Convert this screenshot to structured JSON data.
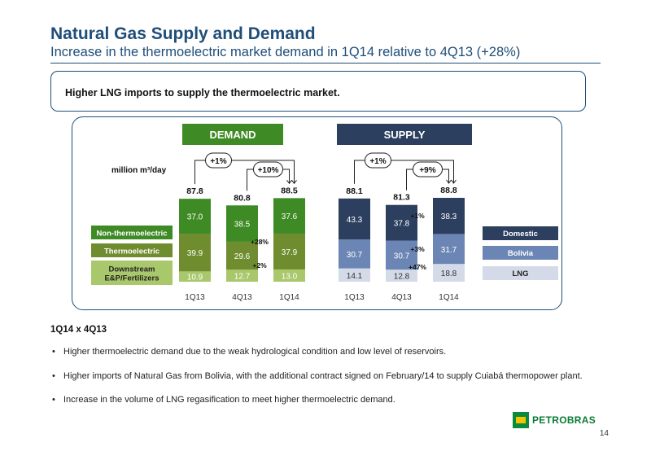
{
  "header": {
    "title": "Natural Gas Supply and Demand",
    "subtitle": "Increase in the thermoelectric market demand in 1Q14 relative to 4Q13 (+28%)"
  },
  "highlight": "Higher LNG imports to supply the thermoelectric market.",
  "section": {
    "title": "1Q14 x 4Q13",
    "bullets": [
      "Higher thermoelectric demand due to the weak hydrological condition and low level of reservoirs.",
      "Higher imports of Natural Gas from Bolivia, with the additional contract signed on February/14 to supply Cuiabá thermopower plant.",
      "Increase in the volume of LNG regasification to meet higher thermoelectric demand."
    ]
  },
  "logo": {
    "text": "PETROBRAS",
    "mark": "BR"
  },
  "page_number": "14",
  "chart_data": [
    {
      "type": "bar",
      "stacked": true,
      "header": "DEMAND",
      "unit_label": "million m³/day",
      "categories": [
        "1Q13",
        "4Q13",
        "1Q14"
      ],
      "series": [
        {
          "name": "Downstream E&P/Fertilizers",
          "label_lines": [
            "Downstream",
            "E&P/Fertilizers"
          ],
          "values": [
            10.9,
            12.7,
            13.0
          ],
          "color": "#a9c76b"
        },
        {
          "name": "Thermoelectric",
          "label_lines": [
            "Thermoelectric"
          ],
          "values": [
            39.9,
            29.6,
            37.9
          ],
          "color": "#6f8c2e"
        },
        {
          "name": "Non-thermoelectric",
          "label_lines": [
            "Non-thermoelectric"
          ],
          "values": [
            37.0,
            38.5,
            37.6
          ],
          "color": "#3e8a24"
        }
      ],
      "totals": [
        "87.8",
        "80.8",
        "88.5"
      ],
      "value_labels": [
        [
          "10.9",
          "39.9",
          "37.0"
        ],
        [
          "12.7",
          "29.6",
          "38.5"
        ],
        [
          "13.0",
          "37.9",
          "37.6"
        ]
      ],
      "growth_series": [
        "+2%",
        "+28%",
        ""
      ],
      "comparisons": [
        {
          "text": "+1%",
          "from": 0,
          "to": 2
        },
        {
          "text": "+10%",
          "from": 1,
          "to": 2
        }
      ],
      "header_color": "#3e8a24"
    },
    {
      "type": "bar",
      "stacked": true,
      "header": "SUPPLY",
      "categories": [
        "1Q13",
        "4Q13",
        "1Q14"
      ],
      "series": [
        {
          "name": "LNG",
          "label_lines": [
            "LNG"
          ],
          "values": [
            14.1,
            12.8,
            18.8
          ],
          "color": "#d4dae8"
        },
        {
          "name": "Bolivia",
          "label_lines": [
            "Bolivia"
          ],
          "values": [
            30.7,
            30.7,
            31.7
          ],
          "color": "#6b86b4"
        },
        {
          "name": "Domestic",
          "label_lines": [
            "Domestic"
          ],
          "values": [
            43.3,
            37.8,
            38.3
          ],
          "color": "#2c3f5e"
        }
      ],
      "totals": [
        "88.1",
        "81.3",
        "88.8"
      ],
      "value_labels": [
        [
          "14.1",
          "30.7",
          "43.3"
        ],
        [
          "12.8",
          "30.7",
          "37.8"
        ],
        [
          "18.8",
          "31.7",
          "38.3"
        ]
      ],
      "growth_series": [
        "+47%",
        "+3%",
        "+1%"
      ],
      "comparisons": [
        {
          "text": "+1%",
          "from": 0,
          "to": 2
        },
        {
          "text": "+9%",
          "from": 1,
          "to": 2
        }
      ],
      "header_color": "#2c3f5e"
    }
  ]
}
